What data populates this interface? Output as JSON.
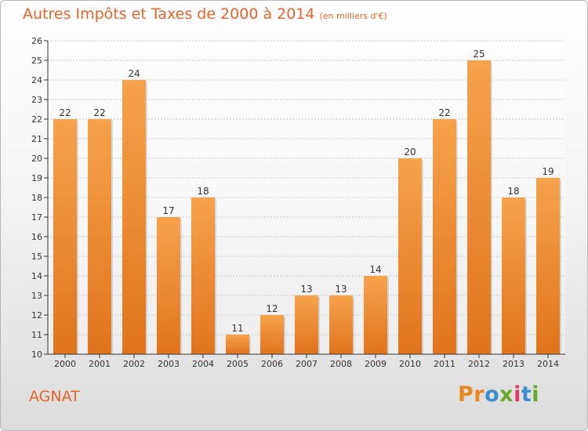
{
  "header": {
    "title": "Autres Impôts et Taxes de 2000 à 2014",
    "subtitle": "(en milliers d'€)"
  },
  "footer": {
    "place": "AGNAT",
    "logo": "Proxiti"
  },
  "colors": {
    "accent": "#e8642c",
    "bar_top": "#f7a24c",
    "bar_bottom": "#e0741c",
    "axis": "#333333",
    "grid": "#c8c8c8"
  },
  "chart_data": {
    "type": "bar",
    "title": "Autres Impôts et Taxes de 2000 à 2014",
    "subtitle": "(en milliers d'€)",
    "xlabel": "",
    "ylabel": "",
    "categories": [
      "2000",
      "2001",
      "2002",
      "2003",
      "2004",
      "2005",
      "2006",
      "2007",
      "2008",
      "2009",
      "2010",
      "2011",
      "2012",
      "2013",
      "2014"
    ],
    "values": [
      22,
      22,
      24,
      17,
      18,
      11,
      12,
      13,
      13,
      14,
      20,
      22,
      25,
      18,
      19
    ],
    "ylim": [
      10,
      26
    ],
    "yticks": [
      10,
      11,
      12,
      13,
      14,
      15,
      16,
      17,
      18,
      19,
      20,
      21,
      22,
      23,
      24,
      25,
      26
    ],
    "grid": true,
    "data_labels": true
  }
}
